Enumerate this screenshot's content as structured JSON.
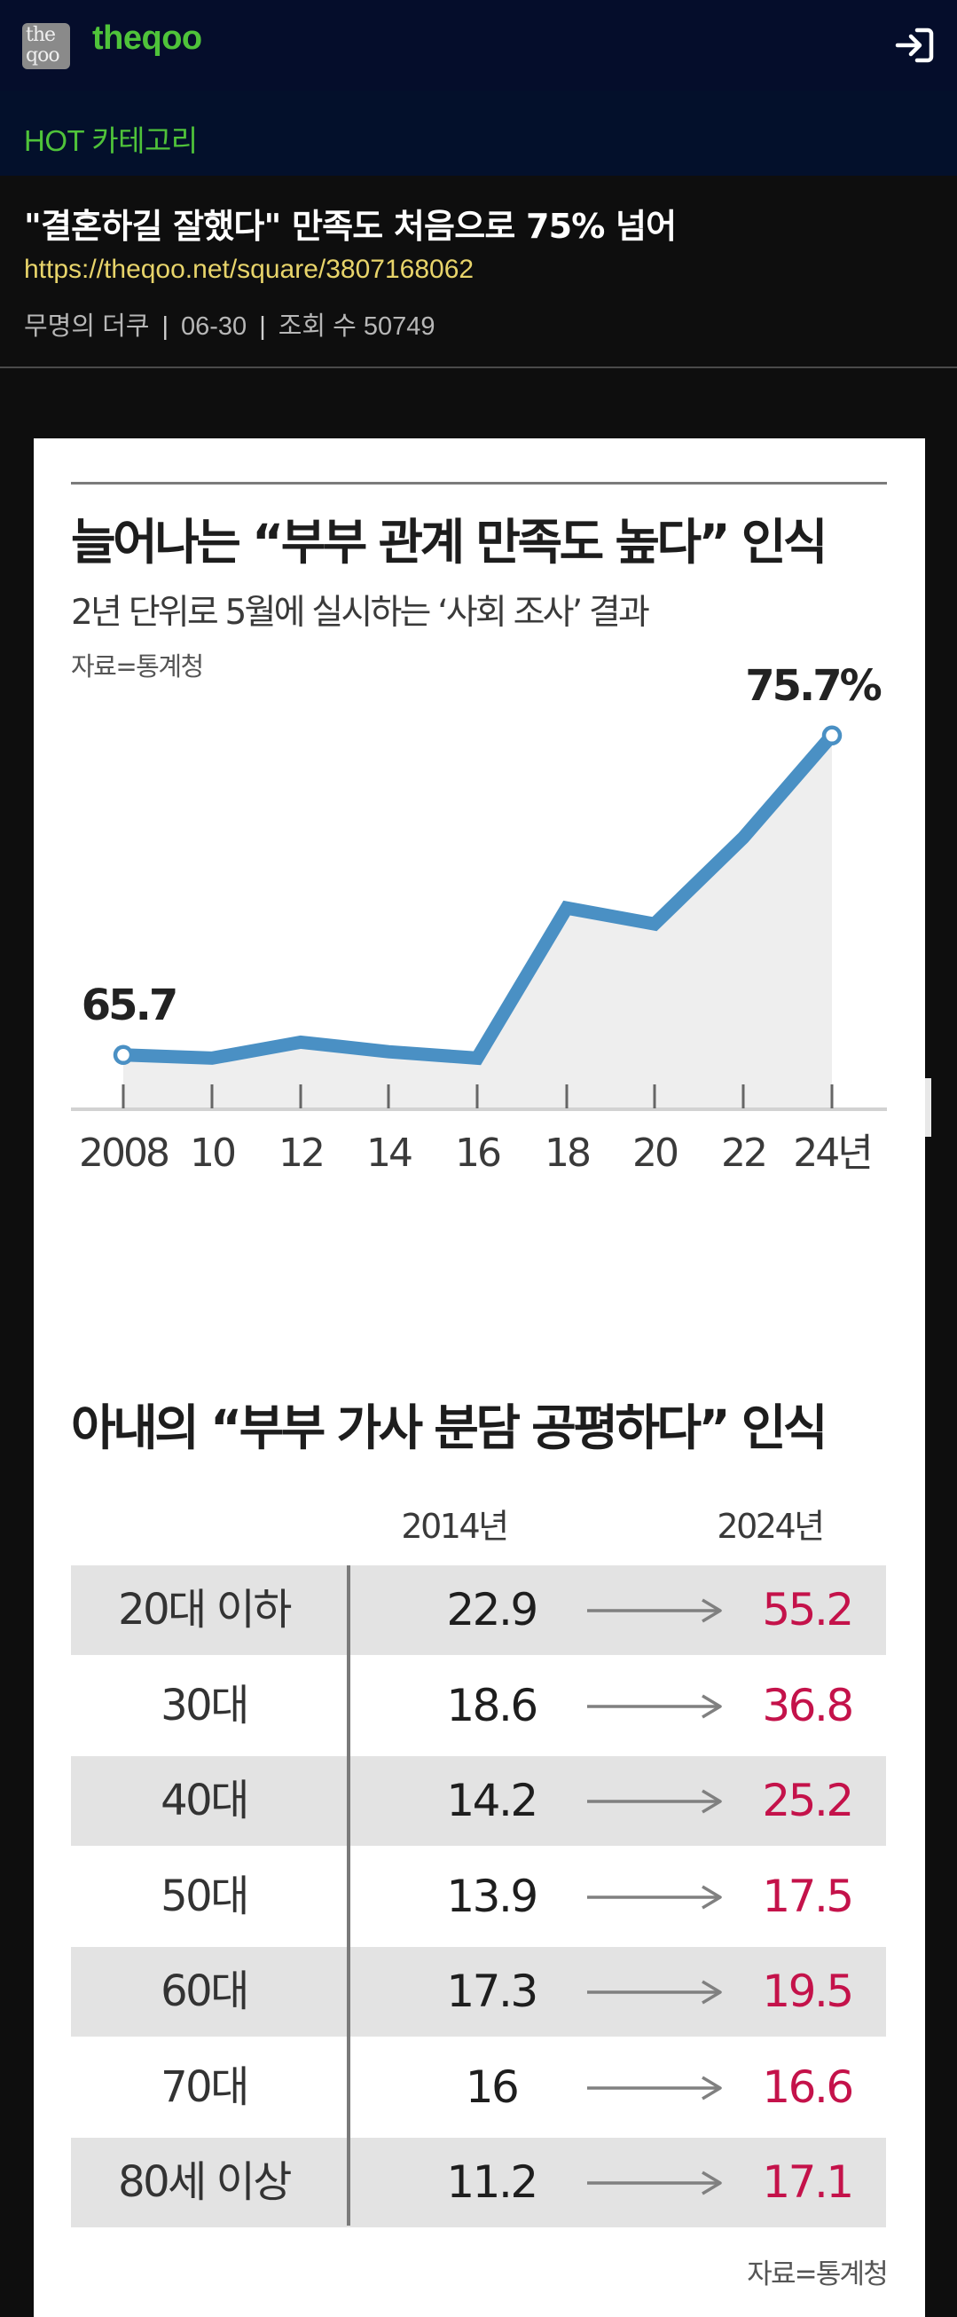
{
  "header": {
    "logo_text": "theqoo",
    "logo_mark": [
      "the",
      "qoo"
    ],
    "login_icon": "login-icon"
  },
  "category": {
    "label": "HOT 카테고리"
  },
  "post": {
    "title": "\"결혼하길 잘했다\" 만족도 처음으로 75% 넘어",
    "url": "https://theqoo.net/square/3807168062",
    "author": "무명의 더쿠",
    "date": "06-30",
    "views_label": "조회 수 50749"
  },
  "figure": {
    "chart_title": "늘어나는 “부부 관계 만족도 높다” 인식",
    "chart_subtitle": "2년 단위로 5월에 실시하는 ‘사회 조사’ 결과",
    "chart_source": "자료=통계청",
    "table_title": "아내의 “부부 가사 분담 공평하다” 인식",
    "table_source": "자료=통계청",
    "table_headers": [
      "2014년",
      "2024년"
    ],
    "table_rows": [
      {
        "age": "20대 이하",
        "v2014": "22.9",
        "v2024": "55.2"
      },
      {
        "age": "30대",
        "v2014": "18.6",
        "v2024": "36.8"
      },
      {
        "age": "40대",
        "v2014": "14.2",
        "v2024": "25.2"
      },
      {
        "age": "50대",
        "v2014": "13.9",
        "v2024": "17.5"
      },
      {
        "age": "60대",
        "v2014": "17.3",
        "v2024": "19.5"
      },
      {
        "age": "70대",
        "v2014": "16",
        "v2024": "16.6"
      },
      {
        "age": "80세 이상",
        "v2014": "11.2",
        "v2024": "17.1"
      }
    ],
    "colors": {
      "line": "#4a90c4",
      "area": "#eeeeee",
      "highlight": "#c4124a",
      "row_shade": "#e3e3e3"
    }
  },
  "chart_data": [
    {
      "type": "line",
      "title": "늘어나는 “부부 관계 만족도 높다” 인식",
      "subtitle": "2년 단위로 5월에 실시하는 ‘사회 조사’ 결과",
      "categories": [
        "2008",
        "10",
        "12",
        "14",
        "16",
        "18",
        "20",
        "22",
        "24년"
      ],
      "series": [
        {
          "values": [
            65.7,
            65.6,
            66.1,
            65.8,
            65.6,
            70.3,
            69.8,
            72.5,
            75.7
          ]
        }
      ],
      "data_labels": [
        "65.7",
        "75.7%"
      ],
      "ylim": [
        60,
        77.5
      ],
      "grid": false,
      "area_fill": true
    },
    {
      "type": "table",
      "title": "아내의 “부부 가사 분담 공평하다” 인식",
      "columns": [
        "",
        "2014년",
        "2024년"
      ],
      "rows": [
        [
          "20대 이하",
          22.9,
          55.2
        ],
        [
          "30대",
          18.6,
          36.8
        ],
        [
          "40대",
          14.2,
          25.2
        ],
        [
          "50대",
          13.9,
          17.5
        ],
        [
          "60대",
          17.3,
          19.5
        ],
        [
          "70대",
          16,
          16.6
        ],
        [
          "80세 이상",
          11.2,
          17.1
        ]
      ]
    }
  ]
}
